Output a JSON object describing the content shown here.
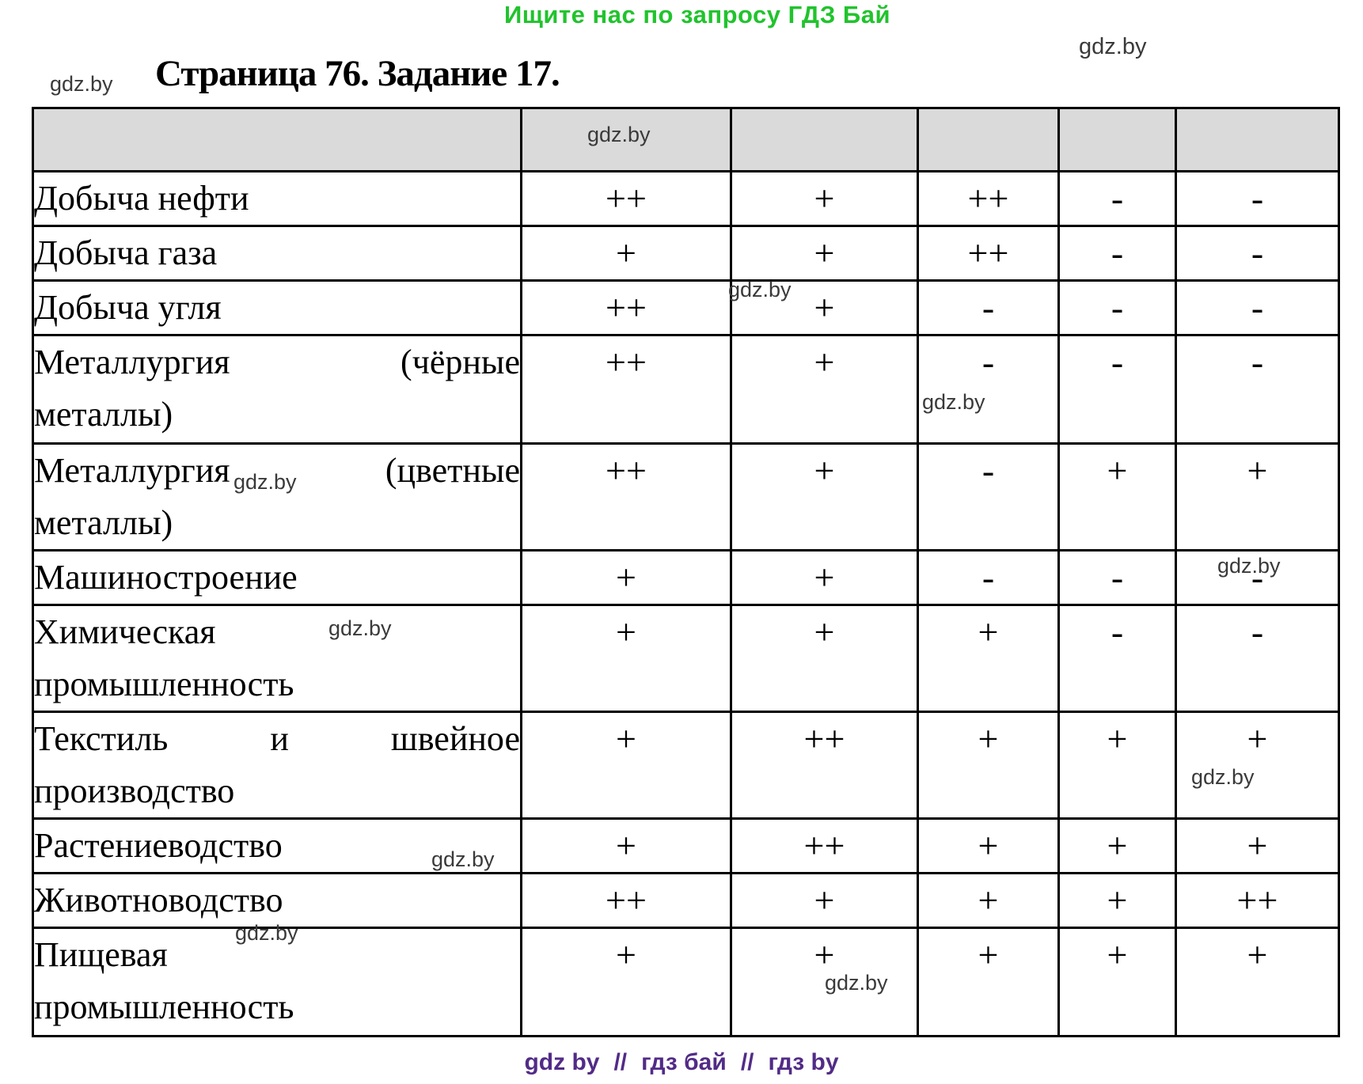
{
  "page": {
    "promo_banner": "Ищите нас по запросу ГДЗ Бай",
    "title": "Страница 76. Задание 17.",
    "watermark": "gdz.by"
  },
  "footer": {
    "parts": [
      "gdz by",
      "//",
      "гдз бай",
      "//",
      "гдз by"
    ]
  },
  "colors": {
    "promo_green": "#21c32d",
    "footer_purple": "#522b87",
    "header_gray": "#dadada",
    "watermark_gray": "#3a3a3a",
    "border_black": "#000000"
  },
  "table": {
    "header_cells": [
      "",
      "",
      "",
      "",
      "",
      ""
    ],
    "rows": [
      {
        "label_lines": [
          {
            "words": [
              "Добыча нефти"
            ],
            "justify": false
          }
        ],
        "values": [
          "++",
          "+",
          "++",
          "-",
          "-"
        ]
      },
      {
        "label_lines": [
          {
            "words": [
              "Добыча газа"
            ],
            "justify": false
          }
        ],
        "values": [
          "+",
          "+",
          "++",
          "-",
          "-"
        ]
      },
      {
        "label_lines": [
          {
            "words": [
              "Добыча угля"
            ],
            "justify": false
          }
        ],
        "values": [
          "++",
          "+",
          "-",
          "-",
          "-"
        ]
      },
      {
        "label_lines": [
          {
            "words": [
              "Металлургия",
              "(чёрные"
            ],
            "justify": true
          },
          {
            "words": [
              "металлы)"
            ],
            "justify": false
          }
        ],
        "values": [
          "++",
          "+",
          "-",
          "-",
          "-"
        ]
      },
      {
        "label_lines": [
          {
            "words": [
              "Металлургия",
              "(цветные"
            ],
            "justify": true
          },
          {
            "words": [
              "металлы)"
            ],
            "justify": false
          }
        ],
        "values": [
          "++",
          "+",
          "-",
          "+",
          "+"
        ]
      },
      {
        "label_lines": [
          {
            "words": [
              "Машиностроение"
            ],
            "justify": false
          }
        ],
        "values": [
          "+",
          "+",
          "-",
          "-",
          "-"
        ]
      },
      {
        "label_lines": [
          {
            "words": [
              "Химическая"
            ],
            "justify": false
          },
          {
            "words": [
              "промышленность"
            ],
            "justify": false
          }
        ],
        "values": [
          "+",
          "+",
          "+",
          "-",
          "-"
        ]
      },
      {
        "label_lines": [
          {
            "words": [
              "Текстиль",
              "и",
              "швейное"
            ],
            "justify": true
          },
          {
            "words": [
              "производство"
            ],
            "justify": false
          }
        ],
        "values": [
          "+",
          "++",
          "+",
          "+",
          "+"
        ]
      },
      {
        "label_lines": [
          {
            "words": [
              "Растениеводство"
            ],
            "justify": false
          }
        ],
        "values": [
          "+",
          "++",
          "+",
          "+",
          "+"
        ]
      },
      {
        "label_lines": [
          {
            "words": [
              "Животноводство"
            ],
            "justify": false
          }
        ],
        "values": [
          "++",
          "+",
          "+",
          "+",
          "++"
        ]
      },
      {
        "label_lines": [
          {
            "words": [
              "Пищевая"
            ],
            "justify": false
          },
          {
            "words": [
              "промышленность"
            ],
            "justify": false
          }
        ],
        "values": [
          "+",
          "+",
          "+",
          "+",
          "+"
        ]
      }
    ]
  }
}
